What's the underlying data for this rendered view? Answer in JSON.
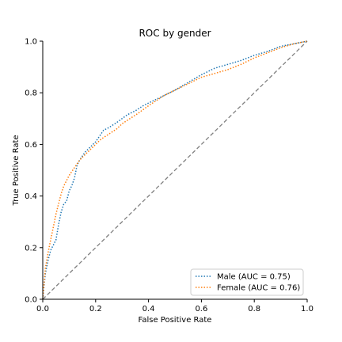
{
  "chart_data": {
    "type": "line",
    "title": "ROC by gender",
    "xlabel": "False Positive Rate",
    "ylabel": "True Positive Rate",
    "xlim": [
      0.0,
      1.0
    ],
    "ylim": [
      0.0,
      1.0
    ],
    "xticks": [
      "0.0",
      "0.2",
      "0.4",
      "0.6",
      "0.8",
      "1.0"
    ],
    "yticks": [
      "0.0",
      "0.2",
      "0.4",
      "0.6",
      "0.8",
      "1.0"
    ],
    "grid": false,
    "legend_position": "lower-right",
    "diagonal_reference": true,
    "series": [
      {
        "name": "Male (AUC = 0.75)",
        "color": "#1f77b4",
        "x": [
          0.0,
          0.01,
          0.02,
          0.03,
          0.04,
          0.05,
          0.06,
          0.07,
          0.08,
          0.09,
          0.1,
          0.11,
          0.12,
          0.13,
          0.14,
          0.16,
          0.18,
          0.2,
          0.22,
          0.23,
          0.25,
          0.28,
          0.3,
          0.32,
          0.35,
          0.38,
          0.4,
          0.43,
          0.46,
          0.5,
          0.55,
          0.6,
          0.65,
          0.7,
          0.75,
          0.8,
          0.85,
          0.9,
          0.95,
          1.0
        ],
        "y": [
          0.0,
          0.1,
          0.15,
          0.19,
          0.21,
          0.23,
          0.29,
          0.34,
          0.37,
          0.38,
          0.42,
          0.44,
          0.47,
          0.52,
          0.54,
          0.57,
          0.59,
          0.61,
          0.64,
          0.655,
          0.665,
          0.685,
          0.7,
          0.715,
          0.73,
          0.75,
          0.76,
          0.775,
          0.79,
          0.81,
          0.84,
          0.87,
          0.895,
          0.91,
          0.925,
          0.945,
          0.96,
          0.98,
          0.99,
          1.0
        ]
      },
      {
        "name": "Female (AUC = 0.76)",
        "color": "#ff7f0e",
        "x": [
          0.0,
          0.01,
          0.02,
          0.03,
          0.04,
          0.05,
          0.06,
          0.07,
          0.08,
          0.09,
          0.1,
          0.12,
          0.14,
          0.16,
          0.18,
          0.2,
          0.22,
          0.25,
          0.28,
          0.3,
          0.33,
          0.36,
          0.4,
          0.43,
          0.46,
          0.5,
          0.55,
          0.6,
          0.65,
          0.7,
          0.75,
          0.8,
          0.85,
          0.9,
          0.95,
          1.0
        ],
        "y": [
          0.0,
          0.12,
          0.18,
          0.23,
          0.28,
          0.33,
          0.37,
          0.41,
          0.44,
          0.46,
          0.48,
          0.51,
          0.54,
          0.56,
          0.58,
          0.6,
          0.62,
          0.64,
          0.66,
          0.68,
          0.7,
          0.72,
          0.75,
          0.77,
          0.79,
          0.81,
          0.835,
          0.86,
          0.875,
          0.89,
          0.91,
          0.935,
          0.955,
          0.975,
          0.99,
          1.0
        ]
      }
    ]
  }
}
